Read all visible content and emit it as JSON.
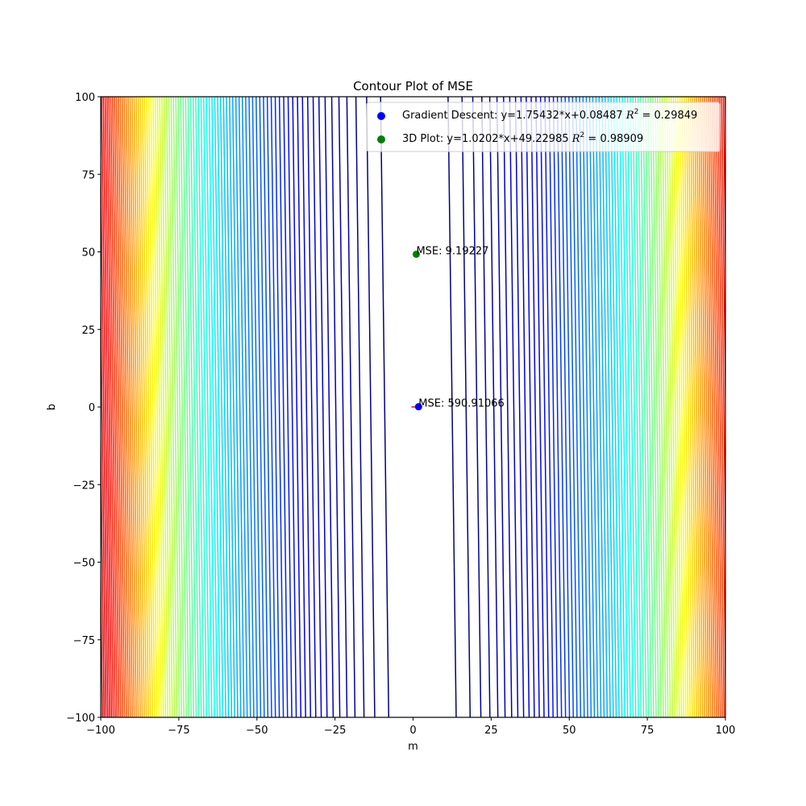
{
  "chart_data": {
    "type": "contour",
    "title": "Contour Plot of MSE",
    "xlabel": "m",
    "ylabel": "b",
    "xlim": [
      -100,
      100
    ],
    "ylim": [
      -100,
      100
    ],
    "xticks": [
      -100,
      -75,
      -50,
      -25,
      0,
      25,
      50,
      75,
      100
    ],
    "yticks": [
      -100,
      -75,
      -50,
      -25,
      0,
      25,
      50,
      75,
      100
    ],
    "xtick_labels": [
      "−100",
      "−75",
      "−50",
      "−25",
      "0",
      "25",
      "50",
      "75",
      "100"
    ],
    "ytick_labels": [
      "−100",
      "−75",
      "−50",
      "−25",
      "0",
      "25",
      "50",
      "75",
      "100"
    ],
    "colormap": "jet",
    "contour": {
      "levels": 100,
      "level_spacing": "uniform in MSE",
      "valley_center_m_at_b_100": 0.4,
      "valley_center_m_at_b_minus_100": 3.0,
      "half_width_first_level_m": 10.8,
      "color_norm_levels": 96
    },
    "series": [
      {
        "name": "Gradient Descent",
        "label": "Gradient Descent: y=1.75432*x+0.08487 $R^2 = 0.29849$",
        "legend_main": "Gradient Descent: y=1.75432*x+0.08487 ",
        "legend_r2_value": "0.29849",
        "color": "#0000ff",
        "points": [
          {
            "m": 1.75432,
            "b": 0.08487
          }
        ],
        "annotation": "MSE: 590.91066",
        "path": [
          {
            "m": -0.5,
            "b": 0.0
          },
          {
            "m": 1.75432,
            "b": 0.08487
          }
        ],
        "path_color": "#ff0000"
      },
      {
        "name": "3D Plot",
        "label": "3D Plot: y=1.0202*x+49.22985 $R^2 = 0.98909$",
        "legend_main": "3D Plot: y=1.0202*x+49.22985 ",
        "legend_r2_value": "0.98909",
        "color": "#008000",
        "points": [
          {
            "m": 1.0202,
            "b": 49.22985
          }
        ],
        "annotation": "MSE: 9.19227"
      }
    ],
    "legend_position": "upper right",
    "grid": false
  },
  "legend": {
    "r2_symbol": "R",
    "r2_sup": "2",
    "equals": " = "
  }
}
